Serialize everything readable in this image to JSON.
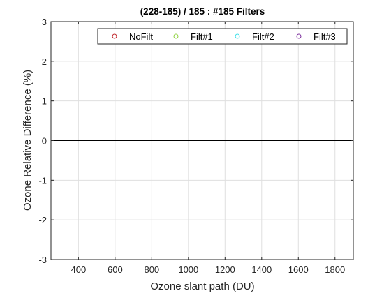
{
  "chart_data": {
    "type": "scatter",
    "title": "(228-185) / 185 : #185 Filters",
    "xlabel": "Ozone slant path (DU)",
    "ylabel": "Ozone Relative Difference (%)",
    "xlim": [
      250,
      1900
    ],
    "ylim": [
      -3,
      3
    ],
    "xticks": [
      400,
      600,
      800,
      1000,
      1200,
      1400,
      1600,
      1800
    ],
    "yticks": [
      -3,
      -2,
      -1,
      0,
      1,
      2,
      3
    ],
    "grid": true,
    "legend_position": "top-right",
    "reference_line_y": 0,
    "series": [
      {
        "name": "NoFilt",
        "color": "#c0262b",
        "marker": "circle",
        "points": []
      },
      {
        "name": "Filt#1",
        "color": "#8fd13f",
        "marker": "circle",
        "points": []
      },
      {
        "name": "Filt#2",
        "color": "#3ee0e8",
        "marker": "circle",
        "points": []
      },
      {
        "name": "Filt#3",
        "color": "#7b2e9c",
        "marker": "circle",
        "points": []
      }
    ]
  }
}
